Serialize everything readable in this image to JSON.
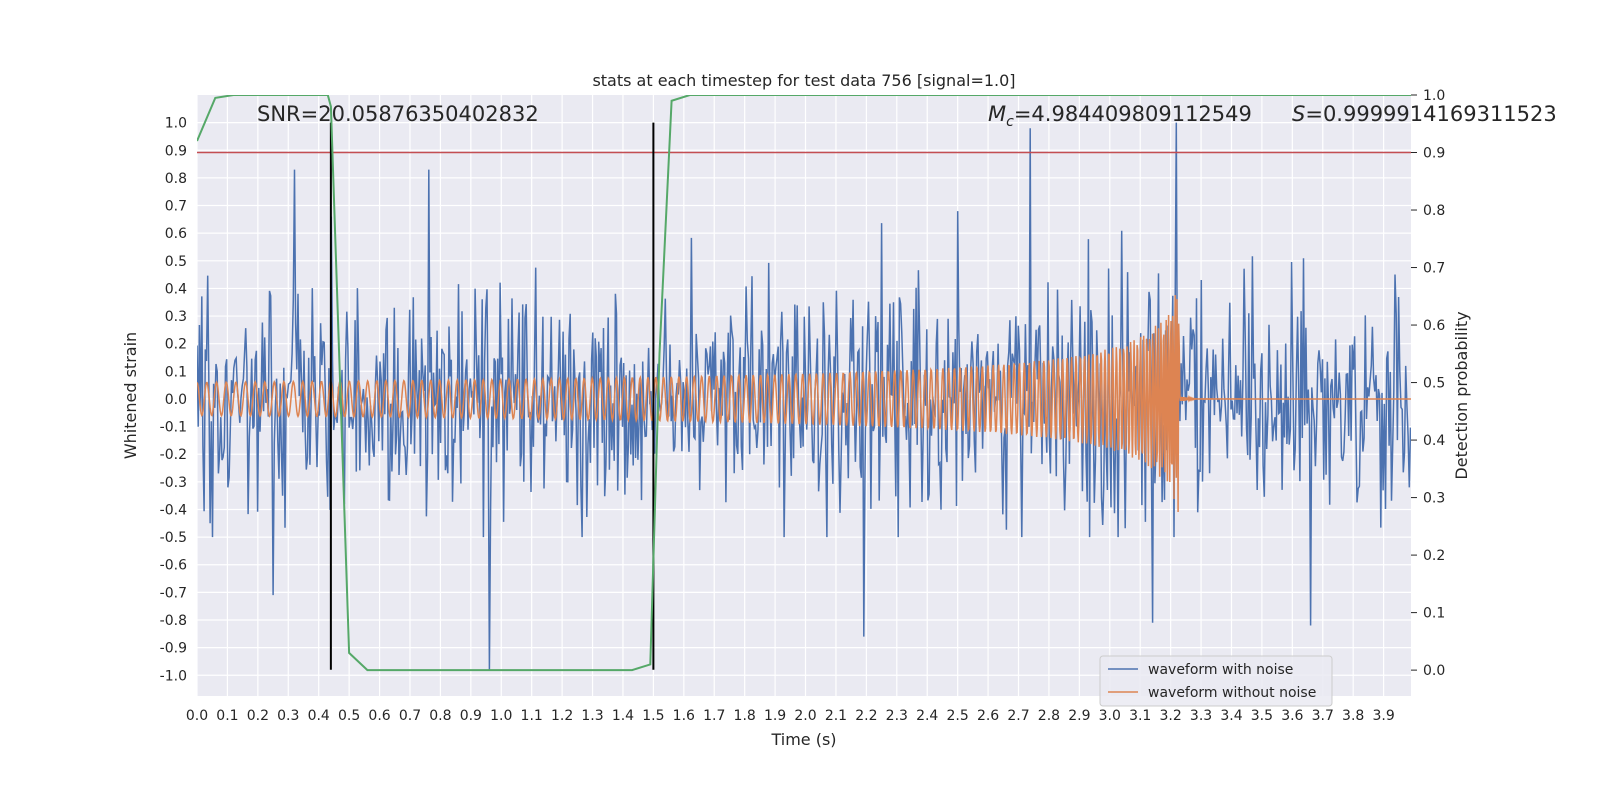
{
  "chart_data": {
    "type": "line",
    "title": "stats at each timestep for test data 756 [signal=1.0]",
    "xlabel": "Time (s)",
    "ylabel": "Whitened strain",
    "y2label": "Detection probability",
    "xlim": [
      0.0,
      3.99
    ],
    "ylim": [
      -1.075,
      1.1
    ],
    "y2lim": [
      -0.045,
      1.0
    ],
    "xticks": [
      "0.0",
      "0.1",
      "0.2",
      "0.3",
      "0.4",
      "0.5",
      "0.6",
      "0.7",
      "0.8",
      "0.9",
      "1.0",
      "1.1",
      "1.2",
      "1.3",
      "1.4",
      "1.5",
      "1.6",
      "1.7",
      "1.8",
      "1.9",
      "2.0",
      "2.1",
      "2.2",
      "2.3",
      "2.4",
      "2.5",
      "2.6",
      "2.7",
      "2.8",
      "2.9",
      "3.0",
      "3.1",
      "3.2",
      "3.3",
      "3.4",
      "3.5",
      "3.6",
      "3.7",
      "3.8",
      "3.9"
    ],
    "yticks": [
      "1.0",
      "0.9",
      "0.8",
      "0.7",
      "0.6",
      "0.5",
      "0.4",
      "0.3",
      "0.2",
      "0.1",
      "0.0",
      "-0.1",
      "-0.2",
      "-0.3",
      "-0.4",
      "-0.5",
      "-0.6",
      "-0.7",
      "-0.8",
      "-0.9",
      "-1.0"
    ],
    "y2ticks": [
      "1.0",
      "0.9",
      "0.8",
      "0.7",
      "0.6",
      "0.5",
      "0.4",
      "0.3",
      "0.2",
      "0.1",
      "0.0"
    ],
    "grid": true,
    "legend_position": "lower-right",
    "annotations": {
      "snr": "SNR=20.05876350402832",
      "mc_symbol": "M",
      "mc_sub": "c",
      "mc_value": "=4.984409809112549",
      "s_symbol": "S",
      "s_value": "=0.9999914169311523"
    },
    "threshold_line": {
      "y2": 0.9,
      "color": "#c44e52"
    },
    "vertical_markers": {
      "x": [
        0.44,
        1.5
      ],
      "y_range": [
        -0.98,
        1.0
      ],
      "color": "#000000"
    },
    "series": [
      {
        "name": "waveform with noise",
        "color": "#4c72b0",
        "sample_rate": 256,
        "duration": 3.99,
        "noise_amplitude": 0.2,
        "peaks": [
          {
            "x": 0.32,
            "y": 0.83
          },
          {
            "x": 0.76,
            "y": 0.83
          },
          {
            "x": 0.44,
            "y": 0.66
          },
          {
            "x": 0.96,
            "y": -0.98
          },
          {
            "x": 2.74,
            "y": 0.98
          },
          {
            "x": 3.22,
            "y": 1.0
          },
          {
            "x": 2.19,
            "y": -0.86
          },
          {
            "x": 3.66,
            "y": -0.82
          },
          {
            "x": 3.14,
            "y": -0.81
          },
          {
            "x": 0.25,
            "y": -0.71
          },
          {
            "x": 2.5,
            "y": 0.68
          }
        ]
      },
      {
        "name": "waveform without noise",
        "color": "#dd8452",
        "sample_rate": 512,
        "start_amplitude": 0.06,
        "merger_time": 3.23,
        "merger_amplitude": 0.43,
        "start_frequency": 31,
        "ringdown_amplitude": 0.01
      },
      {
        "name": "Detection probability",
        "color": "#55a868",
        "axis": "y2",
        "x": [
          0.0,
          0.06,
          0.12,
          0.2,
          0.3,
          0.4,
          0.43,
          0.44,
          0.5,
          0.56,
          0.7,
          1.0,
          1.2,
          1.43,
          1.49,
          1.52,
          1.56,
          1.62,
          2.0,
          3.0,
          3.99
        ],
        "y": [
          0.92,
          0.995,
          1.0,
          1.0,
          1.0,
          1.0,
          1.0,
          0.98,
          0.03,
          0.0,
          0.0,
          0.0,
          0.0,
          0.0,
          0.01,
          0.55,
          0.99,
          1.0,
          1.0,
          1.0,
          1.0
        ]
      }
    ]
  }
}
